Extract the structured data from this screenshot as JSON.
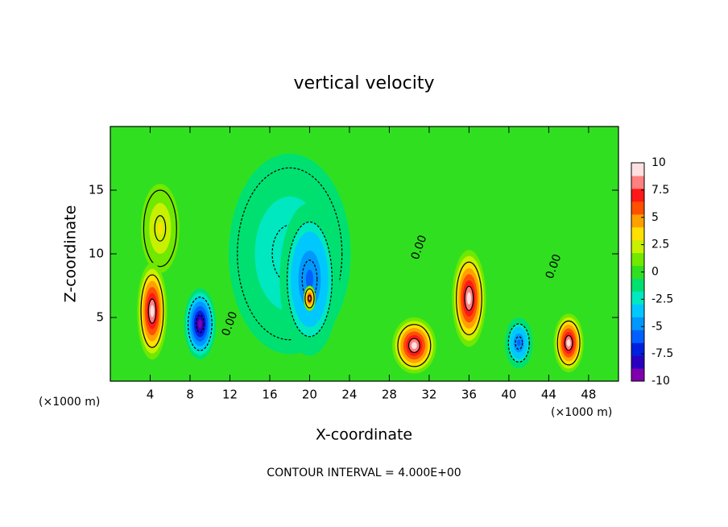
{
  "chart_data": {
    "type": "contour",
    "title": "vertical velocity",
    "x_label": "X-coordinate",
    "y_label": "Z-coordinate",
    "x_unit_label": "(×1000 m)",
    "footer": "CONTOUR INTERVAL = 4.000E+00",
    "xlim": [
      0,
      51
    ],
    "ylim": [
      0,
      20
    ],
    "xticks": [
      4,
      8,
      12,
      16,
      20,
      24,
      28,
      32,
      36,
      40,
      44,
      48
    ],
    "yticks": [
      5,
      10,
      15
    ],
    "zlim": [
      -10,
      10
    ],
    "zticks": [
      10,
      7.5,
      5,
      2.5,
      0,
      -2.5,
      -5,
      -7.5,
      -10
    ],
    "colors": [
      "#8000b0",
      "#2a00c0",
      "#0020e0",
      "#0060ff",
      "#0098ff",
      "#00c8ff",
      "#00e8c0",
      "#00e070",
      "#30e020",
      "#70e800",
      "#c8f000",
      "#ffe000",
      "#ffa000",
      "#ff5000",
      "#ff1818",
      "#ff8080",
      "#ffe0e0"
    ],
    "background_value": 0,
    "features": [
      {
        "x": 18,
        "z": 10,
        "value": -3,
        "rx": 7,
        "rz": 9
      },
      {
        "x": 5,
        "z": 12,
        "value": 3,
        "rx": 2.2,
        "rz": 4
      },
      {
        "x": 20,
        "z": 8,
        "value": -6,
        "rx": 3,
        "rz": 6
      },
      {
        "x": 4.2,
        "z": 5.5,
        "value": 10,
        "rx": 1.5,
        "rz": 3.8
      },
      {
        "x": 9,
        "z": 4.5,
        "value": -10,
        "rx": 1.6,
        "rz": 2.8
      },
      {
        "x": 20,
        "z": 6.5,
        "value": 8,
        "rx": 0.6,
        "rz": 1
      },
      {
        "x": 30.5,
        "z": 2.8,
        "value": 10,
        "rx": 2.2,
        "rz": 2.2
      },
      {
        "x": 36,
        "z": 6.5,
        "value": 10,
        "rx": 1.7,
        "rz": 3.8
      },
      {
        "x": 41,
        "z": 3,
        "value": -6,
        "rx": 1.4,
        "rz": 2
      },
      {
        "x": 46,
        "z": 3,
        "value": 9,
        "rx": 1.5,
        "rz": 2.3
      }
    ],
    "annotations": [
      {
        "text": "0.00",
        "x": 31,
        "z": 10.5
      },
      {
        "text": "0.00",
        "x": 44.5,
        "z": 9
      },
      {
        "text": "0.00",
        "x": 12,
        "z": 4.5
      }
    ]
  }
}
